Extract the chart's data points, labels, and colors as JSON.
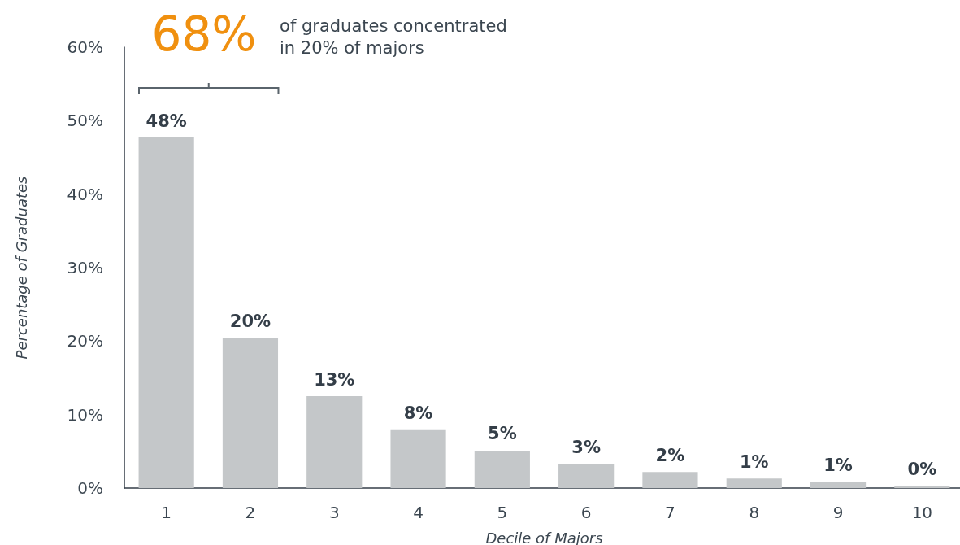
{
  "chart_data": {
    "type": "bar",
    "xlabel": "Decile of Majors",
    "ylabel": "Percentage of Graduates",
    "categories": [
      "1",
      "2",
      "3",
      "4",
      "5",
      "6",
      "7",
      "8",
      "9",
      "10"
    ],
    "values": [
      47.7,
      20.4,
      12.5,
      7.9,
      5.1,
      3.3,
      2.2,
      1.3,
      0.8,
      0.3
    ],
    "value_labels": [
      "48%",
      "20%",
      "13%",
      "8%",
      "5%",
      "3%",
      "2%",
      "1%",
      "1%",
      "0%"
    ],
    "color": "#c4c7c9",
    "ylim": [
      0,
      60
    ],
    "yticks": [
      {
        "value": 0,
        "label": "0%"
      },
      {
        "value": 10,
        "label": "10%"
      },
      {
        "value": 20,
        "label": "20%"
      },
      {
        "value": 30,
        "label": "30%"
      },
      {
        "value": 40,
        "label": "40%"
      },
      {
        "value": 50,
        "label": "50%"
      },
      {
        "value": 60,
        "label": "60%"
      }
    ],
    "grid": false,
    "annotations": [
      "68%",
      "of graduates concentrated\nin 20% of majors"
    ]
  }
}
